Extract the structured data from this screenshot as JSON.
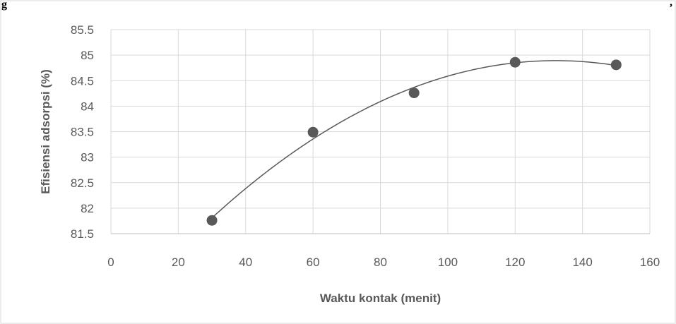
{
  "page": {
    "top_label": "g",
    "top_right_mark": ","
  },
  "chart_data": {
    "type": "scatter",
    "title": "",
    "xlabel": "Waktu kontak (menit)",
    "ylabel": "Efisiensi adsorpsi (%)",
    "xlim": [
      0,
      160
    ],
    "ylim": [
      81.5,
      85.5
    ],
    "x_ticks": [
      "0",
      "20",
      "40",
      "60",
      "80",
      "100",
      "120",
      "140",
      "160"
    ],
    "y_ticks": [
      "81.5",
      "82",
      "82.5",
      "83",
      "83.5",
      "84",
      "84.5",
      "85",
      "85.5"
    ],
    "grid": true,
    "trendline": "polynomial",
    "colors": {
      "marker": "#595959",
      "trendline": "#595959",
      "grid": "#d9d9d9",
      "text": "#595959"
    },
    "series": [
      {
        "x": [
          30,
          60,
          90,
          120,
          150
        ],
        "y": [
          81.76,
          83.49,
          84.26,
          84.86,
          84.81
        ]
      }
    ]
  }
}
